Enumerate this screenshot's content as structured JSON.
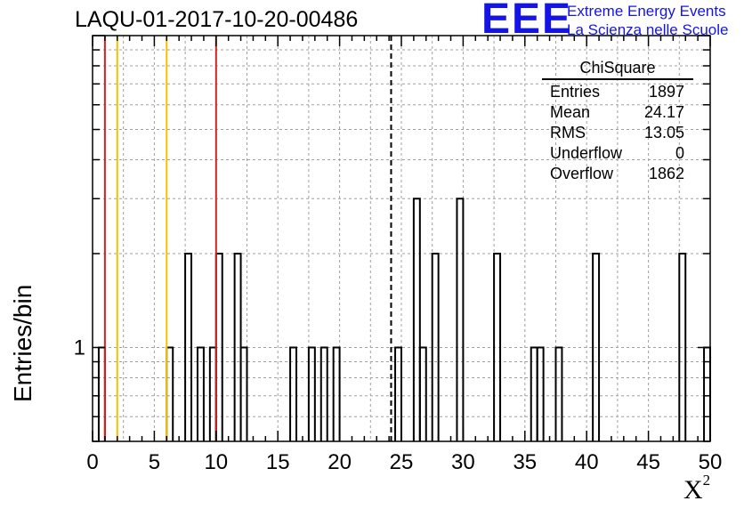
{
  "title": "LAQU-01-2017-10-20-00486",
  "logo": {
    "mark": "EEE",
    "line1": "Extreme Energy Events",
    "line2": "La Scienza nelle Scuole",
    "color": "#1414e6"
  },
  "stats_box": {
    "title": "ChiSquare",
    "rows": [
      {
        "label": "Entries",
        "value": "1897"
      },
      {
        "label": "Mean",
        "value": "24.17"
      },
      {
        "label": "RMS",
        "value": "13.05"
      },
      {
        "label": "Underflow",
        "value": "0"
      },
      {
        "label": "Overflow",
        "value": "1862"
      }
    ]
  },
  "chart_data": {
    "type": "bar",
    "title": "LAQU-01-2017-10-20-00486",
    "xlabel": "X",
    "xlabel_superscript": "2",
    "ylabel": "Entries/bin",
    "y_scale": "log",
    "xlim": [
      0,
      50
    ],
    "ylim": [
      0.5,
      10
    ],
    "x_ticks": [
      0,
      5,
      10,
      15,
      20,
      25,
      30,
      35,
      40,
      45,
      50
    ],
    "y_tick_labels": [
      {
        "value": 1,
        "label": "1"
      }
    ],
    "grid": true,
    "bin_width": 0.5,
    "bins": [
      {
        "x": 0.5,
        "count": 1
      },
      {
        "x": 6.0,
        "count": 1
      },
      {
        "x": 7.5,
        "count": 2
      },
      {
        "x": 8.5,
        "count": 1
      },
      {
        "x": 9.5,
        "count": 1
      },
      {
        "x": 10.0,
        "count": 2
      },
      {
        "x": 11.5,
        "count": 2
      },
      {
        "x": 12.0,
        "count": 1
      },
      {
        "x": 16.0,
        "count": 1
      },
      {
        "x": 17.5,
        "count": 1
      },
      {
        "x": 18.5,
        "count": 1
      },
      {
        "x": 19.5,
        "count": 1
      },
      {
        "x": 24.5,
        "count": 1
      },
      {
        "x": 26.0,
        "count": 3
      },
      {
        "x": 26.5,
        "count": 1
      },
      {
        "x": 27.5,
        "count": 2
      },
      {
        "x": 29.5,
        "count": 3
      },
      {
        "x": 32.5,
        "count": 2
      },
      {
        "x": 35.5,
        "count": 1
      },
      {
        "x": 36.0,
        "count": 1
      },
      {
        "x": 37.5,
        "count": 1
      },
      {
        "x": 40.5,
        "count": 2
      },
      {
        "x": 47.5,
        "count": 2
      },
      {
        "x": 49.5,
        "count": 1
      }
    ],
    "vertical_lines": [
      {
        "x": 1.0,
        "color": "#d42020",
        "style": "solid"
      },
      {
        "x": 2.0,
        "color": "#f2c200",
        "style": "solid"
      },
      {
        "x": 6.0,
        "color": "#f2c200",
        "style": "solid"
      },
      {
        "x": 10.0,
        "color": "#d42020",
        "style": "solid"
      },
      {
        "x": 24.17,
        "color": "#000000",
        "style": "dashed"
      }
    ]
  }
}
